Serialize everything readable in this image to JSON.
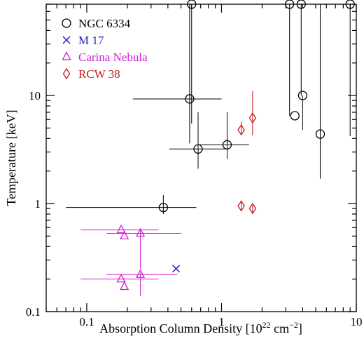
{
  "chart_data": {
    "type": "scatter",
    "xlabel_main": "Absorption Column Density [10",
    "xlabel_exp": "22",
    "xlabel_unit": " cm",
    "xlabel_unit_exp": "−2",
    "xlabel_close": "]",
    "ylabel": "Temperature [keV]",
    "xscale": "log",
    "yscale": "log",
    "xlim": [
      0.05,
      10
    ],
    "ylim": [
      0.1,
      70
    ],
    "xtick_labels": [
      {
        "value": 0.1,
        "label": "0.1"
      },
      {
        "value": 1,
        "label": "1"
      },
      {
        "value": 10,
        "label": "10"
      }
    ],
    "ytick_labels": [
      {
        "value": 0.1,
        "label": "0.1"
      },
      {
        "value": 1,
        "label": "1"
      },
      {
        "value": 10,
        "label": "10"
      }
    ],
    "legend_position": "top-left",
    "series": [
      {
        "name": "NGC 6334",
        "marker": "circle",
        "color": "#000000",
        "points": [
          {
            "x": 0.37,
            "xlo": 0.07,
            "xhi": 0.65,
            "y": 0.92,
            "ylo": 0.8,
            "yhi": 1.2
          },
          {
            "x": 0.67,
            "xlo": 0.41,
            "xhi": 1.08,
            "y": 3.2,
            "ylo": 2.1,
            "yhi": 7.0
          },
          {
            "x": 1.1,
            "xlo": 0.68,
            "xhi": 1.6,
            "y": 3.5,
            "ylo": 2.6,
            "yhi": 7.0
          },
          {
            "x": 0.58,
            "xlo": 0.22,
            "xhi": 1.0,
            "y": 9.3,
            "ylo": 3.6,
            "yhi": 70
          },
          {
            "x": 0.6,
            "xlo": 0.6,
            "xhi": 3.0,
            "y": 70,
            "ylo": 5.5,
            "yhi": 70
          },
          {
            "x": 3.5,
            "xlo": 3.5,
            "xhi": 3.5,
            "y": 6.5,
            "ylo": 6.5,
            "yhi": 6.5
          },
          {
            "x": 3.2,
            "xlo": 3.2,
            "xhi": 3.2,
            "y": 70,
            "ylo": 6.5,
            "yhi": 70
          },
          {
            "x": 3.9,
            "xlo": 3.9,
            "xhi": 3.9,
            "y": 70,
            "ylo": 10,
            "yhi": 70
          },
          {
            "x": 4.0,
            "xlo": 4.0,
            "xhi": 4.0,
            "y": 10,
            "ylo": 4.8,
            "yhi": 10
          },
          {
            "x": 5.4,
            "xlo": 5.4,
            "xhi": 5.4,
            "y": 4.4,
            "ylo": 1.7,
            "yhi": 70
          },
          {
            "x": 9.0,
            "xlo": 9.0,
            "xhi": 9.0,
            "y": 70,
            "ylo": 4.2,
            "yhi": 70
          }
        ]
      },
      {
        "name": "M 17",
        "marker": "cross",
        "color": "#1c1cbf",
        "points": [
          {
            "x": 0.46,
            "xlo": 0.46,
            "xhi": 0.46,
            "y": 0.25,
            "ylo": 0.25,
            "yhi": 0.25
          }
        ]
      },
      {
        "name": "Carina Nebula",
        "marker": "triangle",
        "color": "#d21ed2",
        "points": [
          {
            "x": 0.18,
            "xlo": 0.09,
            "xhi": 0.34,
            "y": 0.57,
            "ylo": 0.57,
            "yhi": 0.57
          },
          {
            "x": 0.19,
            "xlo": 0.19,
            "xhi": 0.19,
            "y": 0.5,
            "ylo": 0.5,
            "yhi": 0.5
          },
          {
            "x": 0.25,
            "xlo": 0.14,
            "xhi": 0.5,
            "y": 0.53,
            "ylo": 0.25,
            "yhi": 0.57
          },
          {
            "x": 0.18,
            "xlo": 0.09,
            "xhi": 0.34,
            "y": 0.2,
            "ylo": 0.2,
            "yhi": 0.2
          },
          {
            "x": 0.19,
            "xlo": 0.19,
            "xhi": 0.19,
            "y": 0.17,
            "ylo": 0.17,
            "yhi": 0.17
          },
          {
            "x": 0.25,
            "xlo": 0.14,
            "xhi": 0.47,
            "y": 0.22,
            "ylo": 0.14,
            "yhi": 0.23
          }
        ]
      },
      {
        "name": "RCW 38",
        "marker": "diamond",
        "color": "#c41e1e",
        "points": [
          {
            "x": 1.4,
            "xlo": 1.4,
            "xhi": 1.4,
            "y": 4.8,
            "ylo": 4.3,
            "yhi": 5.8
          },
          {
            "x": 1.7,
            "xlo": 1.7,
            "xhi": 1.7,
            "y": 6.2,
            "ylo": 4.3,
            "yhi": 11
          },
          {
            "x": 1.4,
            "xlo": 1.4,
            "xhi": 1.4,
            "y": 0.95,
            "ylo": 0.88,
            "yhi": 1.03
          },
          {
            "x": 1.7,
            "xlo": 1.7,
            "xhi": 1.7,
            "y": 0.9,
            "ylo": 0.83,
            "yhi": 0.97
          }
        ]
      }
    ]
  }
}
